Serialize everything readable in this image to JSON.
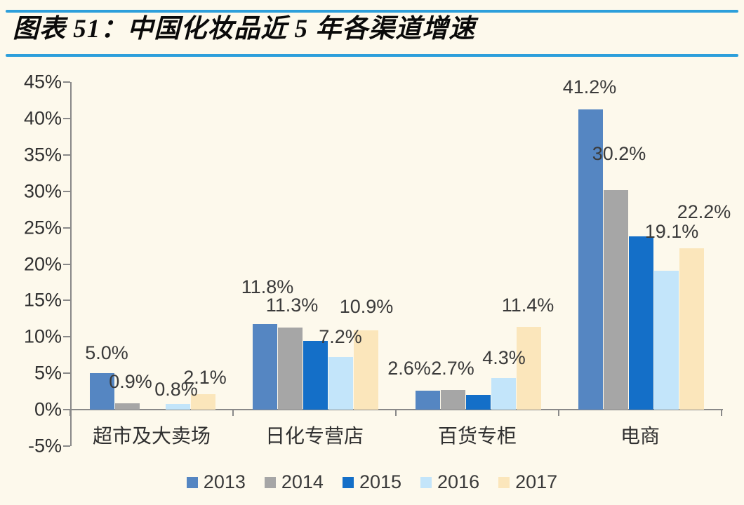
{
  "title": {
    "label": "图表 51：中国化妆品近 5 年各渠道增速"
  },
  "colors": {
    "background": "#FDF9EC",
    "title_rule_blue": "#2D9FDB",
    "axis_gray": "#898989",
    "label_text": "#3a3a3a"
  },
  "chart_data": {
    "type": "bar",
    "title": "中国化妆品近 5 年各渠道增速",
    "categories": [
      "超市及大卖场",
      "日化专营店",
      "百货专柜",
      "电商"
    ],
    "series": [
      {
        "name": "2013",
        "color": "#5586C2",
        "values": [
          5.0,
          11.8,
          2.6,
          41.2
        ],
        "data_labels": [
          "5.0%",
          "11.8%",
          "2.6%",
          "41.2%"
        ]
      },
      {
        "name": "2014",
        "color": "#A6A6A6",
        "values": [
          0.9,
          11.3,
          2.7,
          30.2
        ],
        "data_labels": [
          "0.9%",
          "11.3%",
          "2.7%",
          "30.2%"
        ]
      },
      {
        "name": "2015",
        "color": "#146FC8",
        "values": [
          0.0,
          9.4,
          2.0,
          23.8
        ],
        "data_labels": [
          null,
          null,
          null,
          null
        ]
      },
      {
        "name": "2016",
        "color": "#C3E5FA",
        "values": [
          0.8,
          7.2,
          4.3,
          19.1
        ],
        "data_labels": [
          "0.8%",
          "7.2%",
          "4.3%",
          "19.1%"
        ]
      },
      {
        "name": "2017",
        "color": "#FBE6BB",
        "values": [
          2.1,
          10.9,
          11.4,
          22.2
        ],
        "data_labels": [
          "2.1%",
          "10.9%",
          "11.4%",
          "22.2%"
        ]
      }
    ],
    "ylim": [
      -5,
      45
    ],
    "ytick_step": 5,
    "ytick_labels": [
      "45%",
      "40%",
      "35%",
      "30%",
      "25%",
      "20%",
      "15%",
      "10%",
      "5%",
      "0%",
      "-5%"
    ],
    "xlabel": "",
    "ylabel": "",
    "grid": false,
    "legend": [
      "2013",
      "2014",
      "2015",
      "2016",
      "2017"
    ],
    "legend_position": "bottom"
  }
}
